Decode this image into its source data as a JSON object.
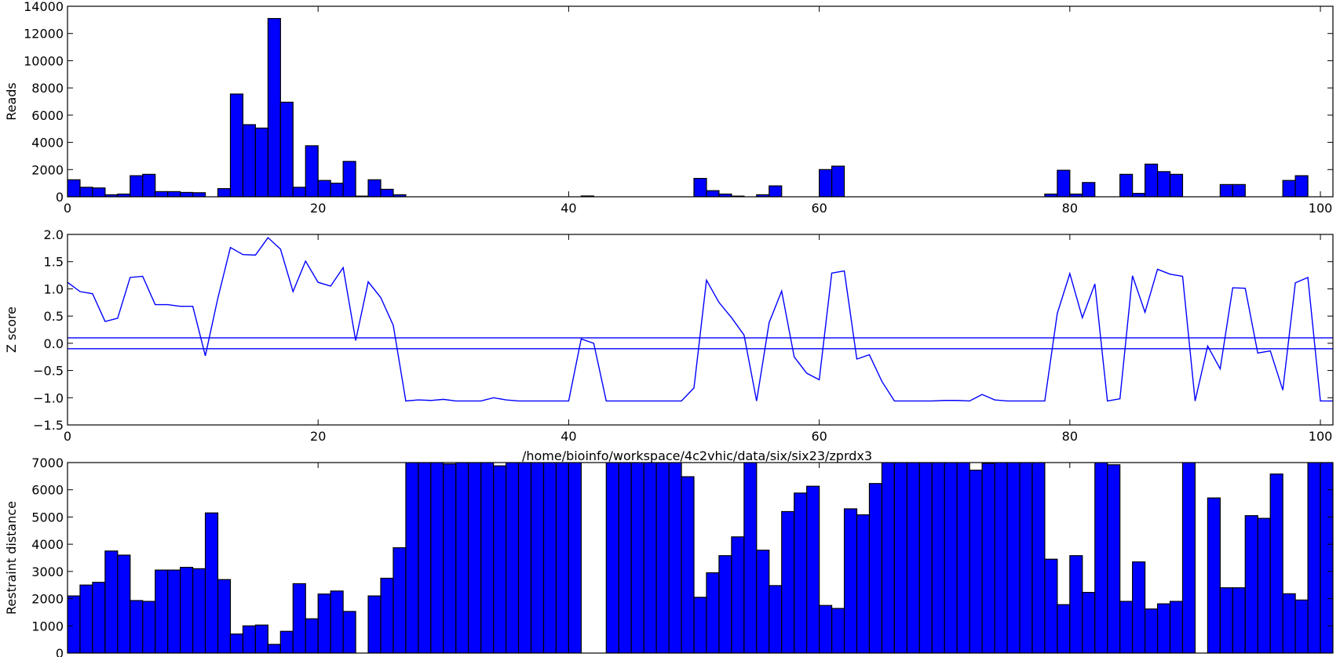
{
  "chart_data": [
    {
      "type": "bar",
      "ylabel": "Reads",
      "xlim": [
        0,
        101
      ],
      "ylim": [
        0,
        14000
      ],
      "xticks": [
        0,
        20,
        40,
        60,
        80,
        100
      ],
      "yticks": [
        0,
        2000,
        4000,
        6000,
        8000,
        10000,
        12000,
        14000
      ],
      "bar_color": "#0000ff",
      "values": [
        1250,
        700,
        650,
        150,
        200,
        1550,
        1650,
        380,
        380,
        320,
        300,
        0,
        600,
        7550,
        5300,
        5050,
        13100,
        6950,
        700,
        3750,
        1200,
        1000,
        2600,
        50,
        1250,
        550,
        150,
        0,
        0,
        0,
        0,
        0,
        0,
        0,
        0,
        0,
        0,
        0,
        0,
        0,
        0,
        60,
        0,
        0,
        0,
        0,
        0,
        0,
        0,
        0,
        1350,
        450,
        200,
        50,
        0,
        150,
        800,
        0,
        0,
        0,
        2000,
        2250,
        0,
        0,
        0,
        0,
        0,
        0,
        0,
        0,
        0,
        0,
        0,
        0,
        0,
        0,
        0,
        0,
        200,
        1950,
        200,
        1050,
        0,
        0,
        1650,
        250,
        2400,
        1850,
        1650,
        0,
        0,
        0,
        900,
        900,
        0,
        0,
        0,
        1200,
        1550,
        0,
        0
      ]
    },
    {
      "type": "line",
      "ylabel": "Z score",
      "xlim": [
        0,
        101
      ],
      "ylim": [
        -1.5,
        2.0
      ],
      "xticks": [
        0,
        20,
        40,
        60,
        80,
        100
      ],
      "yticks": [
        -1.5,
        -1.0,
        -0.5,
        0.0,
        0.5,
        1.0,
        1.5,
        2.0
      ],
      "ytick_labels": [
        "−1.5",
        "−1.0",
        "−0.5",
        "0.0",
        "0.5",
        "1.0",
        "1.5",
        "2.0"
      ],
      "line_color": "#0000ff",
      "reference_lines": [
        0.1,
        -0.1
      ],
      "y": [
        1.12,
        0.95,
        0.91,
        0.4,
        0.46,
        1.21,
        1.23,
        0.71,
        0.71,
        0.68,
        0.68,
        -0.23,
        0.83,
        1.76,
        1.63,
        1.62,
        1.94,
        1.73,
        0.95,
        1.51,
        1.12,
        1.05,
        1.39,
        0.05,
        1.13,
        0.84,
        0.33,
        -1.06,
        -1.04,
        -1.05,
        -1.03,
        -1.06,
        -1.06,
        -1.06,
        -1.0,
        -1.04,
        -1.06,
        -1.06,
        -1.06,
        -1.06,
        -1.06,
        0.08,
        0.0,
        -1.06,
        -1.06,
        -1.06,
        -1.06,
        -1.06,
        -1.06,
        -1.06,
        -0.82,
        1.16,
        0.75,
        0.47,
        0.15,
        -1.06,
        0.38,
        0.96,
        -0.25,
        -0.55,
        -0.67,
        1.29,
        1.33,
        -0.29,
        -0.21,
        -0.7,
        -1.06,
        -1.06,
        -1.06,
        -1.06,
        -1.05,
        -1.05,
        -1.06,
        -0.94,
        -1.04,
        -1.06,
        -1.06,
        -1.06,
        -1.06,
        0.55,
        1.28,
        0.47,
        1.09,
        -1.06,
        -1.02,
        1.24,
        0.57,
        1.36,
        1.27,
        1.23,
        -1.06,
        -0.05,
        -0.47,
        1.02,
        1.01,
        -0.18,
        -0.14,
        -0.86,
        1.11,
        1.21,
        -1.06,
        -1.06
      ]
    },
    {
      "type": "bar",
      "title": "/home/bioinfo/workspace/4c2vhic/data/six/six23/zprdx3",
      "ylabel": "Restraint distance",
      "xlim": [
        0,
        101
      ],
      "ylim": [
        0,
        7000
      ],
      "xticks": [
        0,
        20,
        40,
        60,
        80,
        100
      ],
      "yticks": [
        0,
        1000,
        2000,
        3000,
        4000,
        5000,
        6000,
        7000
      ],
      "bar_color": "#0000ff",
      "values": [
        2100,
        2500,
        2600,
        3750,
        3600,
        1930,
        1900,
        3050,
        3050,
        3150,
        3100,
        5150,
        2700,
        700,
        1000,
        1030,
        320,
        800,
        2550,
        1260,
        2170,
        2280,
        1530,
        0,
        2100,
        2750,
        3870,
        7000,
        7000,
        7000,
        6950,
        7000,
        7000,
        7000,
        6880,
        7000,
        7000,
        7000,
        7000,
        7000,
        7000,
        0,
        0,
        7000,
        7000,
        7000,
        7000,
        7000,
        7000,
        6480,
        2050,
        2950,
        3580,
        4270,
        7000,
        3780,
        2480,
        5200,
        5880,
        6130,
        1750,
        1640,
        5300,
        5080,
        6230,
        7000,
        7000,
        7000,
        7000,
        7000,
        7000,
        7000,
        6720,
        6970,
        7000,
        7000,
        7000,
        7000,
        3450,
        1780,
        3580,
        2230,
        7000,
        6920,
        1900,
        3350,
        1620,
        1810,
        1900,
        7000,
        0,
        5700,
        2400,
        2400,
        5050,
        4950,
        6580,
        2180,
        1950,
        7000,
        7000
      ]
    }
  ]
}
